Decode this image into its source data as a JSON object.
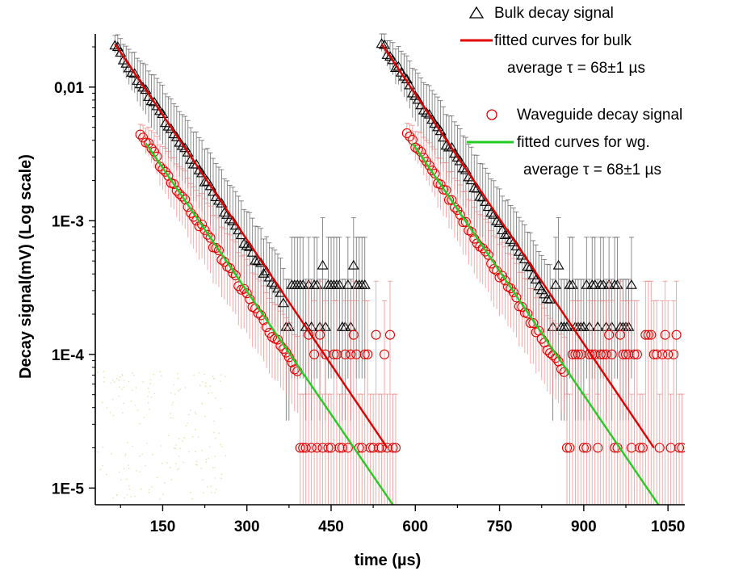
{
  "chart_data": {
    "type": "scatter",
    "xlabel": "time (µs)",
    "ylabel": "Decay signal(mV) (Log scale)",
    "x_scale": "linear",
    "y_scale": "log",
    "xlim": [
      30,
      1080
    ],
    "ylim": [
      7.5e-06,
      0.025
    ],
    "x_ticks": [
      150,
      300,
      450,
      600,
      750,
      900,
      1050
    ],
    "y_ticks": [
      {
        "value": 0.01,
        "label": "0,01"
      },
      {
        "value": 0.001,
        "label": "1E-3"
      },
      {
        "value": 0.0001,
        "label": "1E-4"
      },
      {
        "value": 1e-05,
        "label": "1E-5"
      }
    ],
    "legend_position": "top-right",
    "legend": [
      {
        "label": "Bulk decay signal",
        "marker": "triangle",
        "color": "#000000"
      },
      {
        "label": "fitted curves for bulk",
        "marker": "line",
        "color": "#e00000"
      },
      {
        "label": "average τ = 68±1 µs",
        "marker": "none"
      },
      {
        "label": "Waveguide decay signal",
        "marker": "circle",
        "color": "#e00000"
      },
      {
        "label": "fitted curves for wg.",
        "marker": "line",
        "color": "#22cc22"
      },
      {
        "label": "average τ = 68±1 µs",
        "marker": "none"
      }
    ],
    "series": [
      {
        "name": "Bulk decay signal",
        "marker": "triangle",
        "color": "#000000",
        "sets": [
          {
            "x_start": 65,
            "y_start": 0.021,
            "tau": 68,
            "floor": 0.00025,
            "x_end": 510
          },
          {
            "x_start": 540,
            "y_start": 0.021,
            "tau": 68,
            "floor": 0.00025,
            "x_end": 985
          }
        ]
      },
      {
        "name": "Waveguide decay signal",
        "marker": "circle",
        "color": "#e00000",
        "sets": [
          {
            "x_start": 110,
            "y_start": 0.0045,
            "tau": 68,
            "floor": 7e-05,
            "x_end": 565
          },
          {
            "x_start": 585,
            "y_start": 0.0045,
            "tau": 68,
            "floor": 7e-05,
            "x_end": 1075
          }
        ]
      },
      {
        "name": "fitted curves for bulk",
        "type": "line",
        "color": "#e00000",
        "segments": [
          {
            "x": [
              65,
              550
            ],
            "y": [
              0.021,
              2e-05
            ]
          },
          {
            "x": [
              540,
              1025
            ],
            "y": [
              0.021,
              2e-05
            ]
          }
        ]
      },
      {
        "name": "fitted curves for wg.",
        "type": "line",
        "color": "#22cc22",
        "segments": [
          {
            "x": [
              120,
              560
            ],
            "y": [
              0.0038,
              7.5e-06
            ]
          },
          {
            "x": [
              595,
              1033
            ],
            "y": [
              0.0038,
              7.5e-06
            ]
          }
        ]
      }
    ],
    "colors": {
      "bulk": "#000000",
      "waveguide": "#e00000",
      "fit_bulk": "#e00000",
      "fit_wg": "#22cc22",
      "error_bar_wg": "#f08080",
      "error_bar_bulk": "#555555"
    }
  }
}
